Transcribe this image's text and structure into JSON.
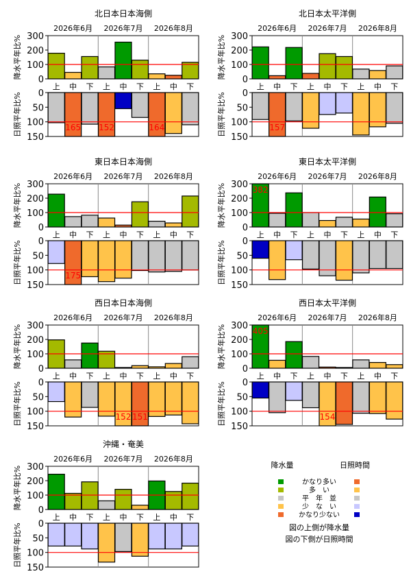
{
  "colors": {
    "precip": {
      "very_high": "#009a00",
      "high": "#a4ba00",
      "normal": "#c6c6c6",
      "low": "#ffc34a",
      "very_low": "#ef6a2c"
    },
    "sun": {
      "very_high": "#ef6a2c",
      "high": "#ffc34a",
      "normal": "#c6c6c6",
      "low": "#c8c8ff",
      "very_low": "#0000c4"
    },
    "reference_line": "#ff0000",
    "overflow_label": "#ff0000"
  },
  "labels": {
    "months": [
      "2026年6月",
      "2026年7月",
      "2026年8月"
    ],
    "dekads": [
      "上",
      "中",
      "下"
    ],
    "precip_axis": "降水平年比%",
    "sun_axis": "日照平年比%"
  },
  "legend": {
    "precip_header": "降水量",
    "sun_header": "日照時間",
    "categories": [
      "かなり多い",
      "多　い",
      "平　年　並",
      "少　な　い",
      "かなり少ない"
    ],
    "note1": "図の上側が降水量",
    "note2": "図の下側が日照時間"
  },
  "chart_data": [
    {
      "type": "bar",
      "title": "北日本日本海側",
      "categories": [
        "6月上",
        "6月中",
        "6月下",
        "7月上",
        "7月中",
        "7月下",
        "8月上",
        "8月中",
        "8月下"
      ],
      "precip": {
        "ylim": [
          0,
          300
        ],
        "values": [
          178,
          45,
          155,
          83,
          255,
          130,
          35,
          25,
          115
        ],
        "classes": [
          "high",
          "low",
          "high",
          "normal",
          "very_high",
          "high",
          "low",
          "very_low",
          "high"
        ]
      },
      "sunshine": {
        "ylim": [
          0,
          150
        ],
        "inverted": true,
        "values": [
          103,
          165,
          108,
          152,
          55,
          85,
          164,
          140,
          110
        ],
        "classes": [
          "normal",
          "very_high",
          "normal",
          "very_high",
          "very_low",
          "normal",
          "very_high",
          "high",
          "normal"
        ]
      }
    },
    {
      "type": "bar",
      "title": "北日本太平洋側",
      "categories": [
        "6月上",
        "6月中",
        "6月下",
        "7月上",
        "7月中",
        "7月下",
        "8月上",
        "8月中",
        "8月下"
      ],
      "precip": {
        "ylim": [
          0,
          300
        ],
        "values": [
          222,
          22,
          218,
          38,
          175,
          155,
          68,
          58,
          90
        ],
        "classes": [
          "very_high",
          "very_low",
          "very_high",
          "very_low",
          "high",
          "high",
          "normal",
          "low",
          "normal"
        ]
      },
      "sunshine": {
        "ylim": [
          0,
          150
        ],
        "inverted": true,
        "values": [
          92,
          157,
          97,
          122,
          75,
          70,
          145,
          117,
          105
        ],
        "classes": [
          "normal",
          "very_high",
          "normal",
          "high",
          "low",
          "low",
          "high",
          "high",
          "normal"
        ]
      }
    },
    {
      "type": "bar",
      "title": "東日本日本海側",
      "categories": [
        "6月上",
        "6月中",
        "6月下",
        "7月上",
        "7月中",
        "7月下",
        "8月上",
        "8月中",
        "8月下"
      ],
      "precip": {
        "ylim": [
          0,
          300
        ],
        "values": [
          228,
          72,
          82,
          62,
          13,
          175,
          40,
          28,
          215
        ],
        "classes": [
          "very_high",
          "normal",
          "normal",
          "low",
          "very_low",
          "high",
          "normal",
          "low",
          "high"
        ]
      },
      "sunshine": {
        "ylim": [
          0,
          150
        ],
        "inverted": true,
        "values": [
          78,
          175,
          123,
          140,
          128,
          102,
          107,
          105,
          100
        ],
        "classes": [
          "low",
          "very_high",
          "high",
          "high",
          "high",
          "normal",
          "normal",
          "normal",
          "normal"
        ]
      }
    },
    {
      "type": "bar",
      "title": "東日本太平洋側",
      "categories": [
        "6月上",
        "6月中",
        "6月下",
        "7月上",
        "7月中",
        "7月下",
        "8月上",
        "8月中",
        "8月下"
      ],
      "precip": {
        "ylim": [
          0,
          300
        ],
        "values": [
          382,
          95,
          237,
          100,
          45,
          68,
          55,
          208,
          92
        ],
        "classes": [
          "very_high",
          "normal",
          "very_high",
          "normal",
          "low",
          "normal",
          "low",
          "very_high",
          "normal"
        ]
      },
      "sunshine": {
        "ylim": [
          0,
          150
        ],
        "inverted": true,
        "values": [
          60,
          133,
          65,
          97,
          120,
          135,
          110,
          95,
          95
        ],
        "classes": [
          "very_low",
          "high",
          "low",
          "normal",
          "normal",
          "high",
          "normal",
          "normal",
          "normal"
        ]
      }
    },
    {
      "type": "bar",
      "title": "西日本日本海側",
      "categories": [
        "6月上",
        "6月中",
        "6月下",
        "7月上",
        "7月中",
        "7月下",
        "8月上",
        "8月中",
        "8月下"
      ],
      "precip": {
        "ylim": [
          0,
          300
        ],
        "values": [
          197,
          58,
          175,
          118,
          5,
          18,
          10,
          33,
          80
        ],
        "classes": [
          "high",
          "normal",
          "very_high",
          "high",
          "very_low",
          "low",
          "low",
          "low",
          "normal"
        ]
      },
      "sunshine": {
        "ylim": [
          0,
          150
        ],
        "inverted": true,
        "values": [
          67,
          120,
          87,
          117,
          152,
          151,
          118,
          113,
          143
        ],
        "classes": [
          "low",
          "high",
          "normal",
          "high",
          "high",
          "very_high",
          "high",
          "high",
          "high"
        ]
      }
    },
    {
      "type": "bar",
      "title": "西日本太平洋側",
      "categories": [
        "6月上",
        "6月中",
        "6月下",
        "7月上",
        "7月中",
        "7月下",
        "8月上",
        "8月中",
        "8月下"
      ],
      "precip": {
        "ylim": [
          0,
          300
        ],
        "values": [
          405,
          55,
          185,
          82,
          8,
          5,
          58,
          40,
          25
        ],
        "classes": [
          "very_high",
          "low",
          "very_high",
          "normal",
          "very_low",
          "very_low",
          "normal",
          "low",
          "low"
        ]
      },
      "sunshine": {
        "ylim": [
          0,
          150
        ],
        "inverted": true,
        "values": [
          55,
          105,
          63,
          88,
          154,
          145,
          107,
          108,
          127
        ],
        "classes": [
          "very_low",
          "normal",
          "low",
          "normal",
          "high",
          "very_high",
          "normal",
          "high",
          "high"
        ]
      }
    },
    {
      "type": "bar",
      "title": "沖縄・奄美",
      "categories": [
        "6月上",
        "6月中",
        "6月下",
        "7月上",
        "7月中",
        "7月下",
        "8月上",
        "8月中",
        "8月下"
      ],
      "precip": {
        "ylim": [
          0,
          300
        ],
        "values": [
          245,
          112,
          192,
          60,
          140,
          30,
          198,
          125,
          183
        ],
        "classes": [
          "very_high",
          "high",
          "high",
          "normal",
          "high",
          "low",
          "very_high",
          "high",
          "high"
        ]
      },
      "sunshine": {
        "ylim": [
          0,
          150
        ],
        "inverted": true,
        "values": [
          78,
          78,
          88,
          133,
          97,
          113,
          88,
          88,
          78
        ],
        "classes": [
          "low",
          "low",
          "low",
          "high",
          "normal",
          "high",
          "low",
          "low",
          "low"
        ]
      }
    }
  ]
}
